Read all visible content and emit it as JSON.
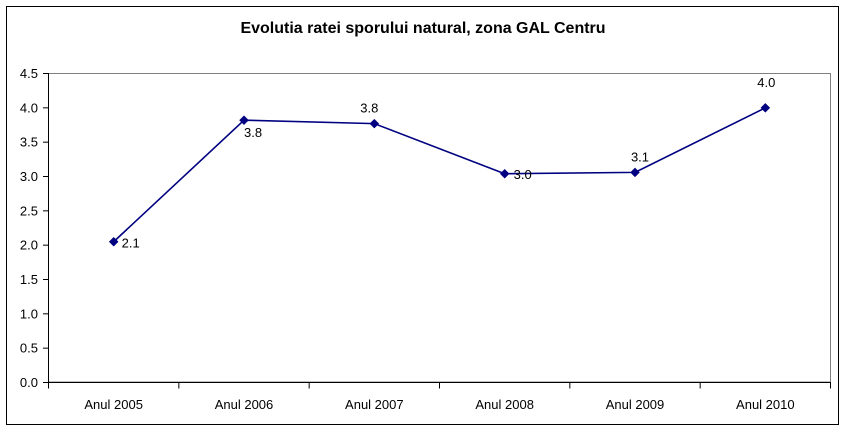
{
  "chart_data": {
    "type": "line",
    "title": "Evolutia ratei sporului natural, zona GAL Centru",
    "categories": [
      "Anul 2005",
      "Anul 2006",
      "Anul 2007",
      "Anul 2008",
      "Anul 2009",
      "Anul 2010"
    ],
    "series": [
      {
        "values": [
          2.05,
          3.82,
          3.77,
          3.04,
          3.06,
          4.0
        ],
        "data_labels": [
          "2.1",
          "3.8",
          "3.8",
          "3.0",
          "3.1",
          "4.0"
        ],
        "color": "#000080",
        "marker": "diamond"
      }
    ],
    "ylim": [
      0,
      4.5
    ],
    "yticks": [
      "0.0",
      "0.5",
      "1.0",
      "1.5",
      "2.0",
      "2.5",
      "3.0",
      "3.5",
      "4.0",
      "4.5"
    ],
    "grid": false,
    "legend": "none"
  }
}
